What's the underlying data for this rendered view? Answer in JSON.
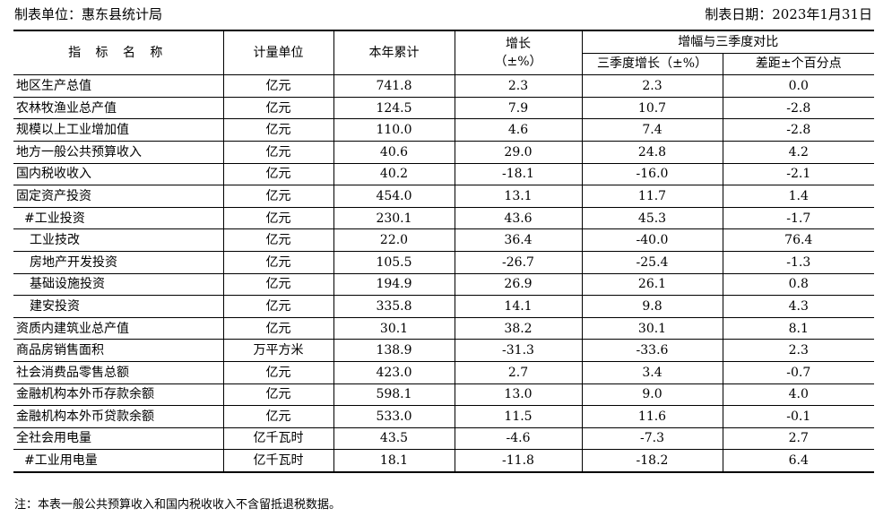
{
  "header": {
    "unit": "制表单位：惠东县统计局",
    "date": "制表日期：2023年1月31日"
  },
  "table": {
    "columns": {
      "indicator": "指 标 名 称",
      "unit": "计量单位",
      "ytd": "本年累计",
      "growth_line1": "增长",
      "growth_line2": "（±%）",
      "compare_group": "增幅与三季度对比",
      "q3_growth": "三季度增长（±%）",
      "diff_pp": "差距±个百分点"
    },
    "rows": [
      {
        "name": "地区生产总值",
        "unit": "亿元",
        "ytd": "741.8",
        "growth": "2.3",
        "q3": "2.3",
        "diff": "0.0"
      },
      {
        "name": "农林牧渔业总产值",
        "unit": "亿元",
        "ytd": "124.5",
        "growth": "7.9",
        "q3": "10.7",
        "diff": "-2.8"
      },
      {
        "name": "规模以上工业增加值",
        "unit": "亿元",
        "ytd": "110.0",
        "growth": "4.6",
        "q3": "7.4",
        "diff": "-2.8"
      },
      {
        "name": "地方一般公共预算收入",
        "unit": "亿元",
        "ytd": "40.6",
        "growth": "29.0",
        "q3": "24.8",
        "diff": "4.2"
      },
      {
        "name": "国内税收收入",
        "unit": "亿元",
        "ytd": "40.2",
        "growth": "-18.1",
        "q3": "-16.0",
        "diff": "-2.1"
      },
      {
        "name": "固定资产投资",
        "unit": "亿元",
        "ytd": "454.0",
        "growth": "13.1",
        "q3": "11.7",
        "diff": "1.4"
      },
      {
        "name": "#工业投资",
        "unit": "亿元",
        "ytd": "230.1",
        "growth": "43.6",
        "q3": "45.3",
        "diff": "-1.7"
      },
      {
        "name": "工业技改",
        "unit": "亿元",
        "ytd": "22.0",
        "growth": "36.4",
        "q3": "-40.0",
        "diff": "76.4"
      },
      {
        "name": "房地产开发投资",
        "unit": "亿元",
        "ytd": "105.5",
        "growth": "-26.7",
        "q3": "-25.4",
        "diff": "-1.3"
      },
      {
        "name": "基础设施投资",
        "unit": "亿元",
        "ytd": "194.9",
        "growth": "26.9",
        "q3": "26.1",
        "diff": "0.8"
      },
      {
        "name": "建安投资",
        "unit": "亿元",
        "ytd": "335.8",
        "growth": "14.1",
        "q3": "9.8",
        "diff": "4.3"
      },
      {
        "name": "资质内建筑业总产值",
        "unit": "亿元",
        "ytd": "30.1",
        "growth": "38.2",
        "q3": "30.1",
        "diff": "8.1"
      },
      {
        "name": "商品房销售面积",
        "unit": "万平方米",
        "ytd": "138.9",
        "growth": "-31.3",
        "q3": "-33.6",
        "diff": "2.3"
      },
      {
        "name": "社会消费品零售总额",
        "unit": "亿元",
        "ytd": "423.0",
        "growth": "2.7",
        "q3": "3.4",
        "diff": "-0.7"
      },
      {
        "name": "金融机构本外币存款余额",
        "unit": "亿元",
        "ytd": "598.1",
        "growth": "13.0",
        "q3": "9.0",
        "diff": "4.0"
      },
      {
        "name": "金融机构本外币贷款余额",
        "unit": "亿元",
        "ytd": "533.0",
        "growth": "11.5",
        "q3": "11.6",
        "diff": "-0.1"
      },
      {
        "name": "全社会用电量",
        "unit": "亿千瓦时",
        "ytd": "43.5",
        "growth": "-4.6",
        "q3": "-7.3",
        "diff": "2.7"
      },
      {
        "name": "#工业用电量",
        "unit": "亿千瓦时",
        "ytd": "18.1",
        "growth": "-11.8",
        "q3": "-18.2",
        "diff": "6.4"
      }
    ]
  },
  "footnote": "注：本表一般公共预算收入和国内税收收入不含留抵退税数据。"
}
